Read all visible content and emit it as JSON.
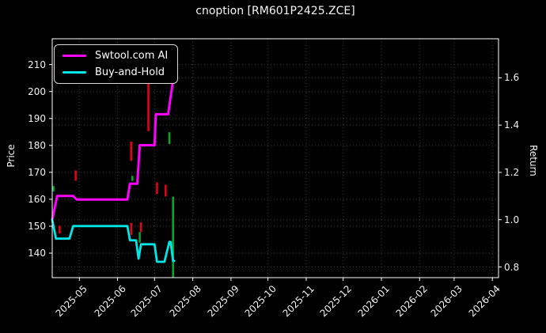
{
  "title": "cnoption [RM601P2425.ZCE]",
  "legend": {
    "items": [
      {
        "label": "Swtool.com AI",
        "color": "#ff00ff"
      },
      {
        "label": "Buy-and-Hold",
        "color": "#00e5e5"
      }
    ]
  },
  "chart_data": {
    "type": "line",
    "title": "cnoption [RM601P2425.ZCE]",
    "background": "#000000",
    "grid": true,
    "grid_color": "#3a3a3a",
    "legend_position": "upper left",
    "x_axis": {
      "tick_labels": [
        "2025-05",
        "2025-06",
        "2025-07",
        "2025-08",
        "2025-09",
        "2025-10",
        "2025-11",
        "2025-12",
        "2026-01",
        "2026-02",
        "2026-03",
        "2026-04"
      ],
      "range": [
        "2025-04-09",
        "2026-04-06"
      ]
    },
    "left_axis": {
      "label": "Price",
      "ticks": [
        140,
        150,
        160,
        170,
        180,
        190,
        200,
        210
      ],
      "range": [
        130.9,
        219.6
      ]
    },
    "right_axis": {
      "label": "Return",
      "ticks": [
        0.8,
        1.0,
        1.2,
        1.4,
        1.6
      ],
      "range": [
        0.755,
        1.765
      ]
    },
    "series": [
      {
        "name": "Swtool.com AI",
        "color": "#ff00ff",
        "width": 3,
        "axis": "right",
        "points": [
          [
            "2025-04-09",
            1.0
          ],
          [
            "2025-04-13",
            1.1
          ],
          [
            "2025-04-26",
            1.1
          ],
          [
            "2025-04-29",
            1.085
          ],
          [
            "2025-06-09",
            1.085
          ],
          [
            "2025-06-11",
            1.152
          ],
          [
            "2025-06-17",
            1.152
          ],
          [
            "2025-06-19",
            1.315
          ],
          [
            "2025-07-01",
            1.315
          ],
          [
            "2025-07-02",
            1.446
          ],
          [
            "2025-07-12",
            1.446
          ],
          [
            "2025-07-16",
            1.59
          ],
          [
            "2025-07-18",
            1.59
          ]
        ]
      },
      {
        "name": "Buy-and-Hold",
        "color": "#00e5e5",
        "width": 2.8,
        "axis": "right",
        "points": [
          [
            "2025-04-09",
            1.0
          ],
          [
            "2025-04-12",
            0.92
          ],
          [
            "2025-04-23",
            0.92
          ],
          [
            "2025-04-26",
            0.973
          ],
          [
            "2025-06-09",
            0.973
          ],
          [
            "2025-06-11",
            0.913
          ],
          [
            "2025-06-16",
            0.913
          ],
          [
            "2025-06-18",
            0.835
          ],
          [
            "2025-06-20",
            0.896
          ],
          [
            "2025-07-01",
            0.896
          ],
          [
            "2025-07-03",
            0.822
          ],
          [
            "2025-07-09",
            0.822
          ],
          [
            "2025-07-13",
            0.906
          ],
          [
            "2025-07-14",
            0.906
          ],
          [
            "2025-07-16",
            0.826
          ],
          [
            "2025-07-17",
            0.826
          ]
        ]
      }
    ],
    "price_bars": [
      {
        "date": "2025-04-10",
        "low": 162.9,
        "high": 164.9,
        "color": "#00a62e"
      },
      {
        "date": "2025-04-15",
        "low": 147.3,
        "high": 150.2,
        "color": "#e60018"
      },
      {
        "date": "2025-04-28",
        "low": 166.9,
        "high": 170.7,
        "color": "#e60018"
      },
      {
        "date": "2025-06-12",
        "low": 174.3,
        "high": 181.4,
        "color": "#e60018"
      },
      {
        "date": "2025-06-12",
        "low": 146.8,
        "high": 151.2,
        "color": "#e60018"
      },
      {
        "date": "2025-06-13",
        "low": 166.8,
        "high": 168.7,
        "color": "#00a62e"
      },
      {
        "date": "2025-06-19",
        "low": 143.9,
        "high": 147.8,
        "color": "#00a62e"
      },
      {
        "date": "2025-06-20",
        "low": 147.8,
        "high": 151.4,
        "color": "#e60018"
      },
      {
        "date": "2025-06-26",
        "low": 185.3,
        "high": 203.4,
        "color": "#e60018"
      },
      {
        "date": "2025-07-03",
        "low": 161.9,
        "high": 166.3,
        "color": "#e60018"
      },
      {
        "date": "2025-07-10",
        "low": 161.0,
        "high": 165.4,
        "color": "#e60018"
      },
      {
        "date": "2025-07-13",
        "low": 180.5,
        "high": 184.9,
        "color": "#00a62e"
      },
      {
        "date": "2025-07-16",
        "low": 131.0,
        "high": 161.0,
        "color": "#00a62e"
      }
    ]
  }
}
